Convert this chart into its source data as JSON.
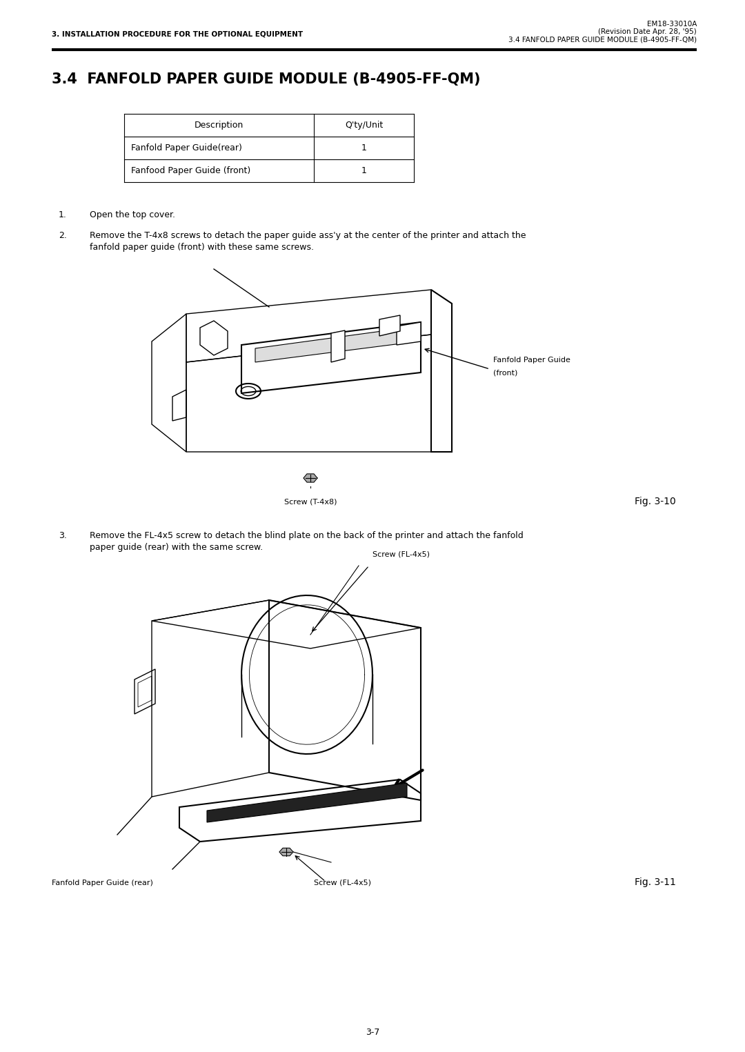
{
  "bg_color": "#ffffff",
  "page_width": 10.8,
  "page_height": 15.25,
  "header_left": "3. INSTALLATION PROCEDURE FOR THE OPTIONAL EQUIPMENT",
  "header_right_line1": "EM18-33010A",
  "header_right_line2": "(Revision Date Apr. 28, '95)",
  "header_right_line3": "3.4 FANFOLD PAPER GUIDE MODULE (B-4905-FF-QM)",
  "section_title": "3.4  FANFOLD PAPER GUIDE MODULE (B-4905-FF-QM)",
  "table_headers": [
    "Description",
    "Q'ty/Unit"
  ],
  "table_rows": [
    [
      "Fanfold Paper Guide(rear)",
      "1"
    ],
    [
      "Fanfood Paper Guide (front)",
      "1"
    ]
  ],
  "step1": "Open the top cover.",
  "step2_num": "2.",
  "step2_text": "Remove the T-4x8 screws to detach the paper guide ass'y at the center of the printer and attach the\nfanfold paper guide (front) with these same screws.",
  "step3_num": "3.",
  "step3_text": "Remove the FL-4x5 screw to detach the blind plate on the back of the printer and attach the fanfold\npaper guide (rear) with the same screw.",
  "fig1_label_line1": "Fanfold Paper Guide",
  "fig1_label_line2": "(front)",
  "fig1_screw_label": "Screw (T-4x8)",
  "fig1_caption": "Fig. 3-10",
  "fig2_screw_top": "Screw (FL-4x5)",
  "fig2_label_bottom_left": "Fanfold Paper Guide (rear)",
  "fig2_screw_bottom": "Screw (FL-4x5)",
  "fig2_caption": "Fig. 3-11",
  "page_number": "3-7",
  "header_fontsize": 7.5,
  "section_title_fontsize": 15,
  "body_fontsize": 9,
  "table_fontsize": 9,
  "fig_label_fontsize": 8,
  "fig_caption_fontsize": 10,
  "lw": 1.0
}
